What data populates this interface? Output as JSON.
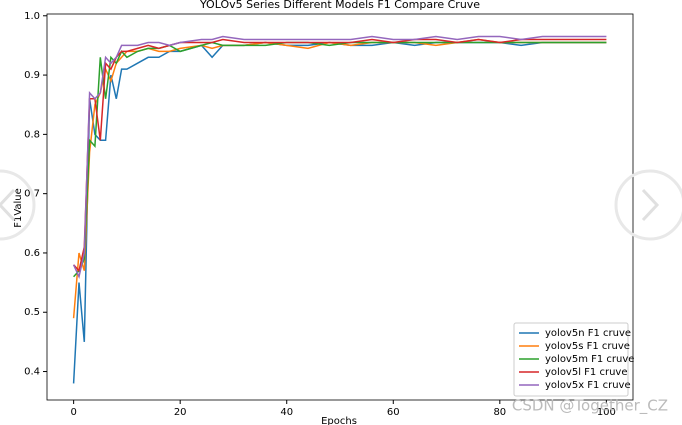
{
  "chart_data": {
    "type": "line",
    "title": "YOLOv5 Series Different Models F1 Compare Cruve",
    "xlabel": "Epochs",
    "ylabel": "F1Value",
    "x": [
      0,
      1,
      2,
      3,
      4,
      5,
      6,
      7,
      8,
      9,
      10,
      12,
      14,
      16,
      18,
      20,
      24,
      26,
      28,
      32,
      36,
      40,
      44,
      48,
      52,
      56,
      60,
      64,
      68,
      72,
      76,
      80,
      84,
      88,
      92,
      96,
      100
    ],
    "series": [
      {
        "name": "yolov5n F1 cruve",
        "color": "#1f77b4",
        "values": [
          0.38,
          0.55,
          0.45,
          0.86,
          0.8,
          0.79,
          0.79,
          0.9,
          0.86,
          0.91,
          0.91,
          0.92,
          0.93,
          0.93,
          0.94,
          0.94,
          0.95,
          0.93,
          0.95,
          0.95,
          0.955,
          0.95,
          0.95,
          0.955,
          0.95,
          0.95,
          0.955,
          0.95,
          0.955,
          0.955,
          0.955,
          0.955,
          0.95,
          0.955,
          0.955,
          0.955,
          0.955
        ]
      },
      {
        "name": "yolov5s F1 cruve",
        "color": "#ff7f0e",
        "values": [
          0.49,
          0.6,
          0.57,
          0.77,
          0.85,
          0.87,
          0.91,
          0.89,
          0.92,
          0.93,
          0.94,
          0.94,
          0.945,
          0.94,
          0.94,
          0.945,
          0.95,
          0.945,
          0.95,
          0.95,
          0.955,
          0.95,
          0.945,
          0.955,
          0.95,
          0.955,
          0.955,
          0.955,
          0.95,
          0.955,
          0.96,
          0.955,
          0.955,
          0.955,
          0.955,
          0.955,
          0.955
        ]
      },
      {
        "name": "yolov5m F1 cruve",
        "color": "#2ca02c",
        "values": [
          0.56,
          0.57,
          0.59,
          0.79,
          0.78,
          0.93,
          0.86,
          0.93,
          0.92,
          0.94,
          0.93,
          0.94,
          0.945,
          0.945,
          0.95,
          0.94,
          0.95,
          0.955,
          0.95,
          0.95,
          0.95,
          0.955,
          0.955,
          0.95,
          0.955,
          0.955,
          0.955,
          0.955,
          0.955,
          0.955,
          0.955,
          0.955,
          0.955,
          0.955,
          0.955,
          0.955,
          0.955
        ]
      },
      {
        "name": "yolov5l F1 cruve",
        "color": "#d62728",
        "values": [
          0.58,
          0.57,
          0.61,
          0.86,
          0.86,
          0.79,
          0.92,
          0.91,
          0.93,
          0.94,
          0.94,
          0.945,
          0.95,
          0.945,
          0.95,
          0.955,
          0.955,
          0.955,
          0.96,
          0.955,
          0.955,
          0.955,
          0.955,
          0.955,
          0.955,
          0.96,
          0.955,
          0.96,
          0.96,
          0.955,
          0.96,
          0.955,
          0.96,
          0.96,
          0.96,
          0.96,
          0.96
        ]
      },
      {
        "name": "yolov5x F1 cruve",
        "color": "#9467bd",
        "values": [
          0.58,
          0.56,
          0.6,
          0.87,
          0.86,
          0.87,
          0.93,
          0.92,
          0.93,
          0.95,
          0.95,
          0.95,
          0.955,
          0.955,
          0.95,
          0.955,
          0.96,
          0.96,
          0.965,
          0.96,
          0.96,
          0.96,
          0.96,
          0.96,
          0.96,
          0.965,
          0.96,
          0.96,
          0.965,
          0.96,
          0.965,
          0.965,
          0.96,
          0.965,
          0.965,
          0.965,
          0.965
        ]
      }
    ],
    "xlim": [
      -5,
      105
    ],
    "ylim": [
      0.352,
      1.003
    ],
    "xticks": [
      0,
      20,
      40,
      60,
      80,
      100
    ],
    "yticks": [
      0.4,
      0.5,
      0.6,
      0.7,
      0.8,
      0.9,
      {
        "value": 1,
        "label": "1.0"
      }
    ],
    "legend": "lower right",
    "grid": false
  },
  "watermark": "CSDN @Together_CZ"
}
